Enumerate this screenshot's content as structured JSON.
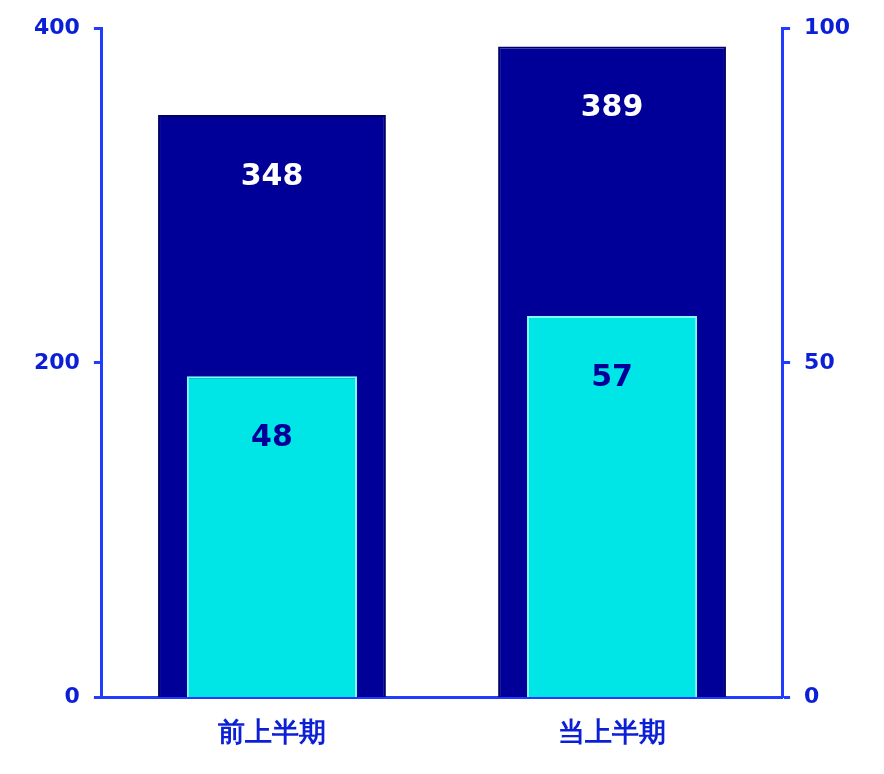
{
  "chart_data": {
    "type": "bar",
    "categories": [
      "前上半期",
      "当上半期"
    ],
    "series": [
      {
        "color": "#000099",
        "values": [
          348,
          389
        ]
      },
      {
        "color": "#00e5e5",
        "values": [
          48,
          57
        ],
        "axis": "y2"
      }
    ],
    "ylim": [
      0,
      400
    ],
    "yticks": [
      0,
      200,
      400
    ],
    "y2lim": [
      0,
      100
    ],
    "y2ticks": [
      0,
      50,
      100
    ],
    "grid": false,
    "data_labels": true
  }
}
